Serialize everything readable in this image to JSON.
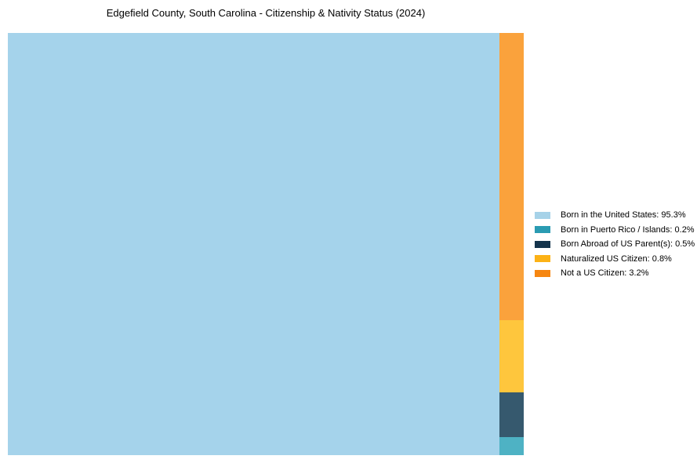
{
  "chart_data": {
    "type": "treemap",
    "title": "Edgefield County, South Carolina - Citizenship & Nativity Status (2024)",
    "unit": "%",
    "legend_position": "right",
    "grid": false,
    "series": [
      {
        "label": "Born in the United States",
        "value": 95.3,
        "tile_color": "#a5d3eb",
        "legend_color": "#a6d2e8"
      },
      {
        "label": "Born in Puerto Rico / Islands",
        "value": 0.2,
        "tile_color": "#4eb2c4",
        "legend_color": "#2a9bb2"
      },
      {
        "label": "Born Abroad of US Parent(s)",
        "value": 0.5,
        "tile_color": "#36596e",
        "legend_color": "#14344c"
      },
      {
        "label": "Naturalized US Citizen",
        "value": 0.8,
        "tile_color": "#fec63d",
        "legend_color": "#fcb216"
      },
      {
        "label": "Not a US Citizen",
        "value": 3.2,
        "tile_color": "#faa23c",
        "legend_color": "#f68611"
      }
    ]
  }
}
